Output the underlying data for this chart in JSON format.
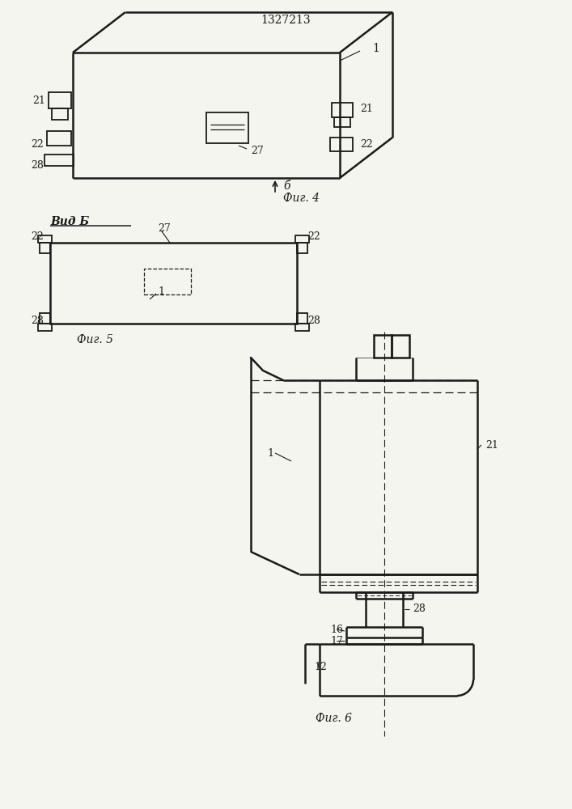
{
  "title": "1327213",
  "bg_color": "#f5f5f0",
  "line_color": "#1a1a1a",
  "fig4_caption": "Фиг. 4",
  "fig5_caption": "Фиг. 5",
  "fig6_caption": "Фиг. 6",
  "vid_b_label": "Вид Б",
  "b_arrow_label": "б"
}
